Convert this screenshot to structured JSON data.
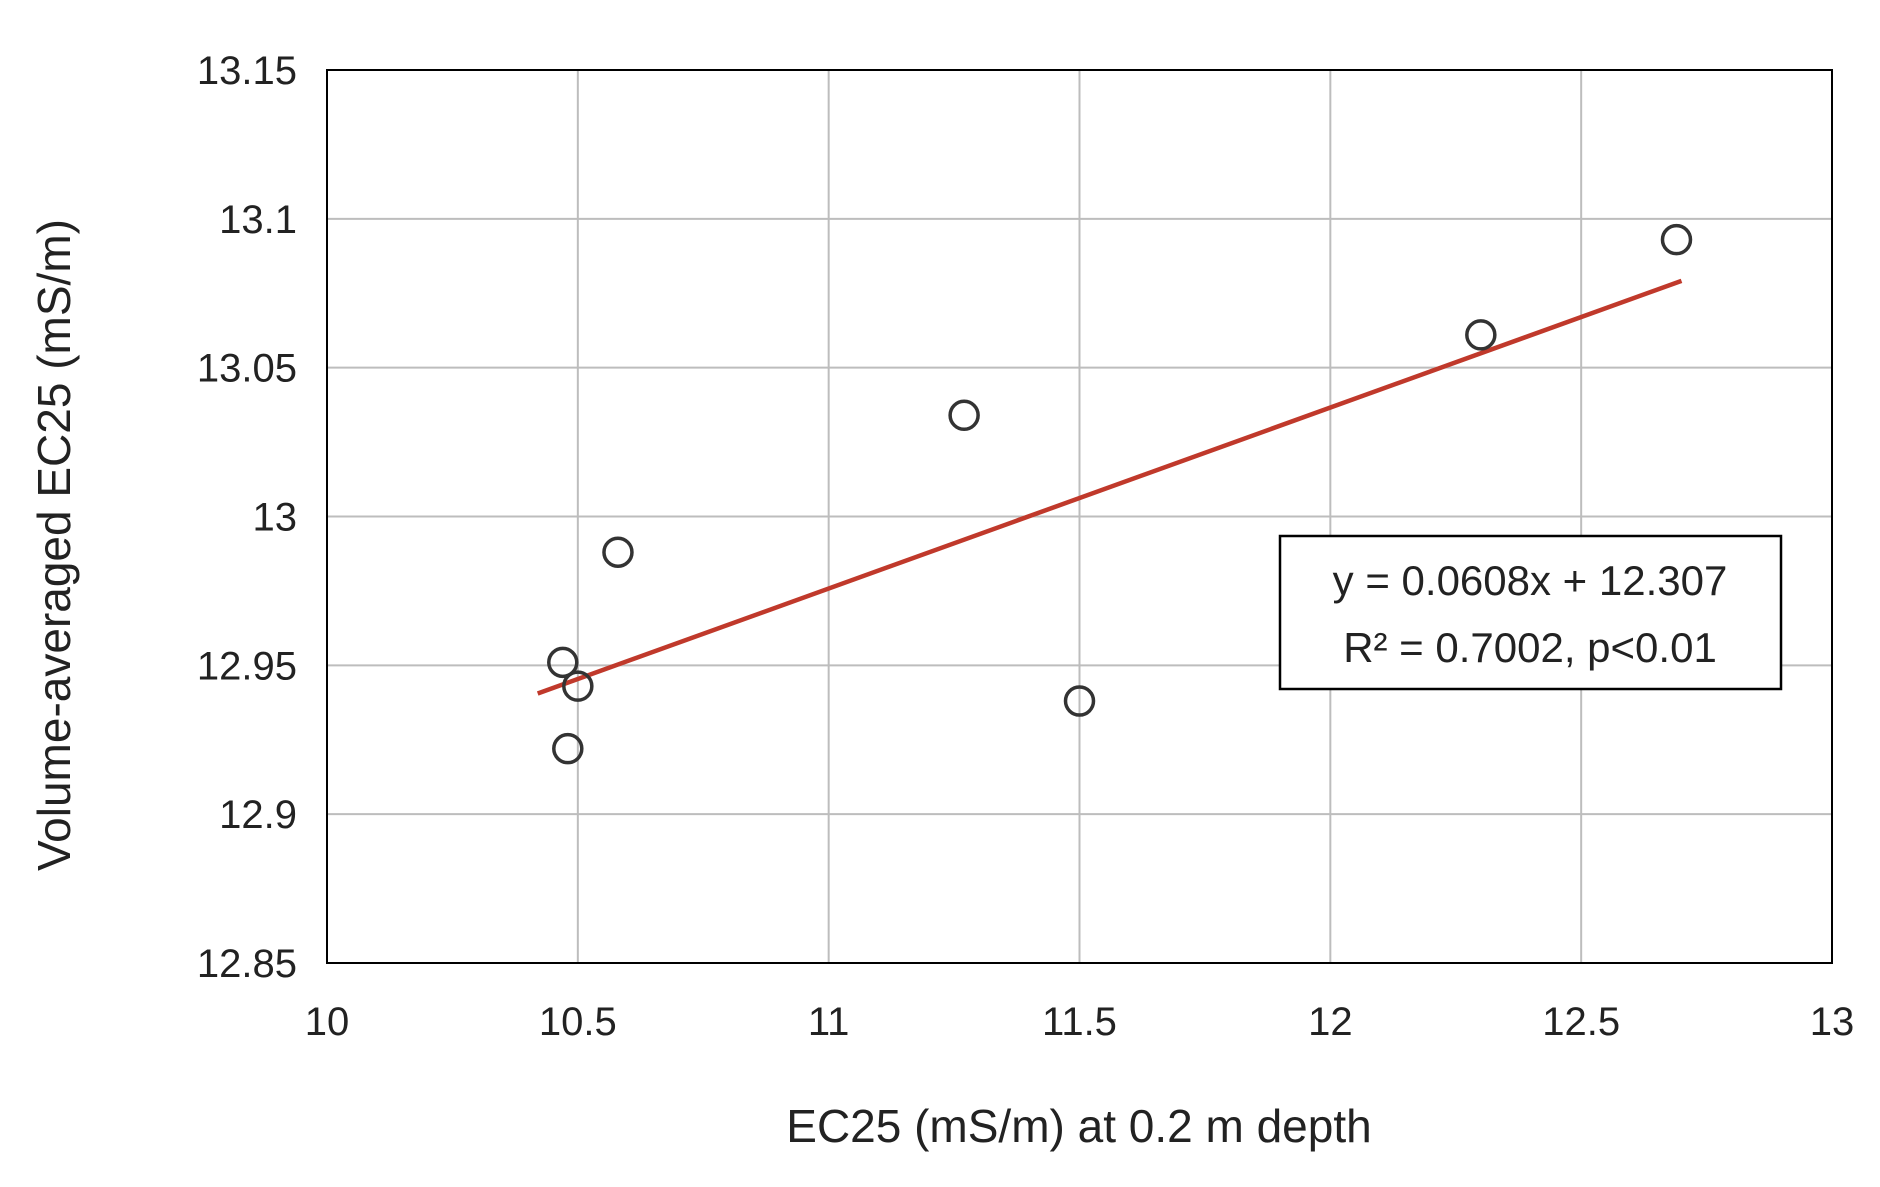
{
  "chart_data": {
    "type": "scatter",
    "xlabel": "EC25 (mS/m) at 0.2 m depth",
    "ylabel": "Volume-averaged EC25 (mS/m)",
    "xlim": [
      10,
      13
    ],
    "ylim": [
      12.85,
      13.15
    ],
    "x_ticks": [
      "10",
      "10.5",
      "11",
      "11.5",
      "12",
      "12.5",
      "13"
    ],
    "y_ticks": [
      "12.85",
      "12.9",
      "12.95",
      "13",
      "13.05",
      "13.1",
      "13.15"
    ],
    "grid": true,
    "legend": "none",
    "points": [
      {
        "x": 10.47,
        "y": 12.951
      },
      {
        "x": 10.5,
        "y": 12.943
      },
      {
        "x": 10.48,
        "y": 12.922
      },
      {
        "x": 10.58,
        "y": 12.988
      },
      {
        "x": 11.27,
        "y": 13.034
      },
      {
        "x": 11.5,
        "y": 12.938
      },
      {
        "x": 12.3,
        "y": 13.061
      },
      {
        "x": 12.69,
        "y": 13.093
      }
    ],
    "trendline": {
      "slope": 0.0608,
      "intercept": 12.307,
      "x_start": 10.42,
      "x_end": 12.7,
      "color": "#c0392b"
    },
    "marker_color": "#333333",
    "annotation": {
      "line1": "y = 0.0608x + 12.307",
      "line2": "R² = 0.7002, p<0.01"
    }
  }
}
